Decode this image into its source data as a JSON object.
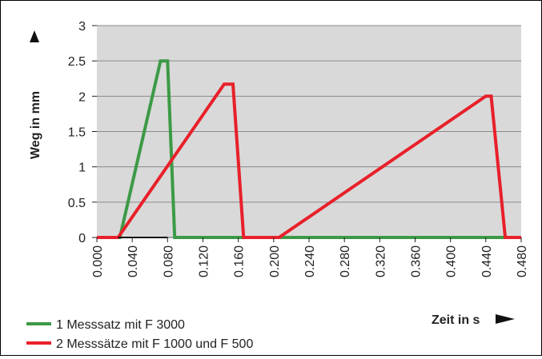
{
  "chart_data": {
    "type": "line",
    "ylabel": "Weg in mm",
    "xlabel": "Zeit in s",
    "xlim": [
      0,
      0.48
    ],
    "ylim": [
      0,
      3
    ],
    "x_ticks": [
      "0.000",
      "0.040",
      "0.080",
      "0.120",
      "0.160",
      "0.200",
      "0.240",
      "0.280",
      "0.320",
      "0.360",
      "0.400",
      "0.440",
      "0.480"
    ],
    "y_ticks": [
      "0",
      "0.5",
      "1",
      "1.5",
      "2",
      "2.5",
      "3"
    ],
    "grid": true,
    "plot_background": "#d9d9d9",
    "legend_placement": "bottom-left",
    "series": [
      {
        "name": "1 Messsatz mit F 3000",
        "color": "#3c9a46",
        "points": [
          [
            0,
            0
          ],
          [
            0.026,
            0
          ],
          [
            0.072,
            2.5
          ],
          [
            0.08,
            2.5
          ],
          [
            0.088,
            0
          ],
          [
            0.48,
            0
          ]
        ]
      },
      {
        "name": "2 Messsätze mit F 1000 und F 500",
        "color": "#e8202a",
        "points": [
          [
            0,
            0
          ],
          [
            0.024,
            0
          ],
          [
            0.144,
            2.17
          ],
          [
            0.154,
            2.17
          ],
          [
            0.166,
            0
          ],
          [
            0.206,
            0
          ],
          [
            0.44,
            2.0
          ],
          [
            0.446,
            2.0
          ],
          [
            0.462,
            0
          ],
          [
            0.48,
            0
          ]
        ]
      }
    ],
    "baseline_segment": {
      "x": [
        0.024,
        0.08
      ],
      "y": 0,
      "color": "#111111"
    }
  }
}
